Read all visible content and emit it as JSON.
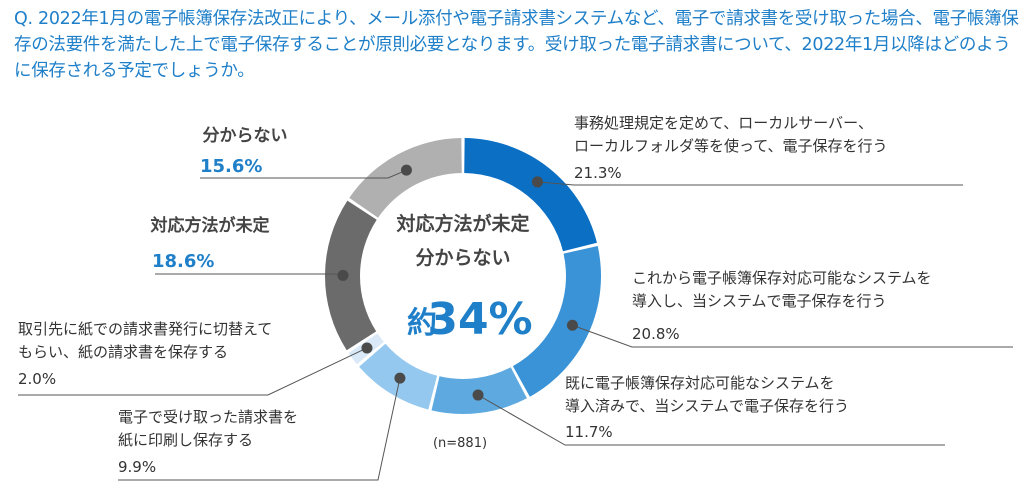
{
  "question": "Q. 2022年1月の電子帳簿保存法改正により、メール添付や電子請求書システムなど、電子で請求書を受け取った場合、電子帳簿保存の法要件を満たした上で電子保存することが原則必要となります。受け取った電子請求書について、2022年1月以降はどのように保存される予定でしょうか。",
  "chart_data": {
    "type": "pie",
    "variant": "donut",
    "sample_note": "(n=881)",
    "center": {
      "line1": "対応方法が未定",
      "line2": "分からない",
      "prefix": "約",
      "value": "34%"
    },
    "slices": [
      {
        "name": "事務処理規定を定めて、ローカルサーバー、ローカルフォルダ等を使って、電子保存を行う",
        "lines": [
          "事務処理規定を定めて、ローカルサーバー、",
          "ローカルフォルダ等を使って、電子保存を行う"
        ],
        "value": 21.3,
        "label": "21.3%",
        "color": "#0b6fc4"
      },
      {
        "name": "これから電子帳簿保存対応可能なシステムを導入し、当システムで電子保存を行う",
        "lines": [
          "これから電子帳簿保存対応可能なシステムを",
          "導入し、当システムで電子保存を行う"
        ],
        "value": 20.8,
        "label": "20.8%",
        "color": "#3a93d6"
      },
      {
        "name": "既に電子帳簿保存対応可能なシステムを導入済みで、当システムで電子保存を行う",
        "lines": [
          "既に電子帳簿保存対応可能なシステムを",
          "導入済みで、当システムで電子保存を行う"
        ],
        "value": 11.7,
        "label": "11.7%",
        "color": "#5eaae0"
      },
      {
        "name": "電子で受け取った請求書を紙に印刷し保存する",
        "lines": [
          "電子で受け取った請求書を",
          "紙に印刷し保存する"
        ],
        "value": 9.9,
        "label": "9.9%",
        "color": "#95c8ef"
      },
      {
        "name": "取引先に紙での請求書発行に切替えてもらい、紙の請求書を保存する",
        "lines": [
          "取引先に紙での請求書発行に切替えて",
          "もらい、紙の請求書を保存する"
        ],
        "value": 2.0,
        "label": "2.0%",
        "color": "#d9e9f7"
      },
      {
        "name": "対応方法が未定",
        "lines": [
          "対応方法が未定"
        ],
        "value": 18.6,
        "label": "18.6%",
        "color": "#6b6b6b",
        "emphasis": true
      },
      {
        "name": "分からない",
        "lines": [
          "分からない"
        ],
        "value": 15.6,
        "label": "15.6%",
        "color": "#b0b0b0",
        "emphasis": true
      }
    ]
  }
}
